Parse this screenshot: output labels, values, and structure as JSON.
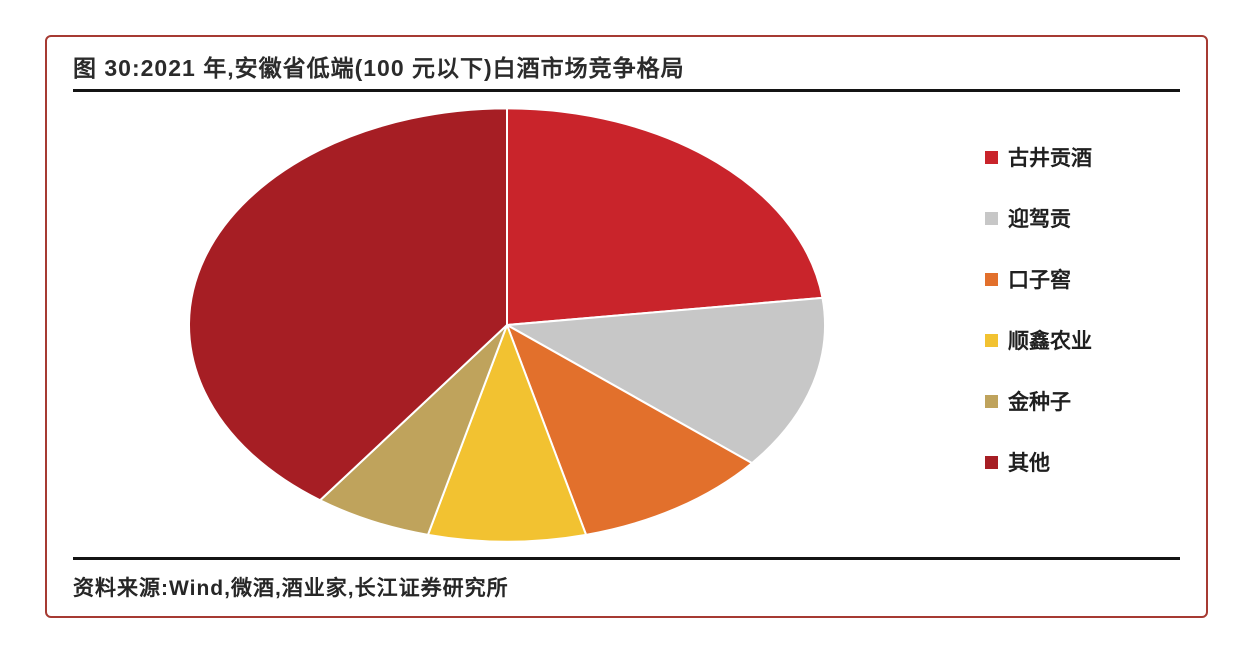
{
  "figure": {
    "title": "图 30:2021 年,安徽省低端(100 元以下)白酒市场竞争格局",
    "source": "资料来源:Wind,微酒,酒业家,长江证券研究所"
  },
  "colors": {
    "card_border": "#a63a32",
    "divider_rule": "#141414",
    "title_text": "#2b2b2b",
    "slice_stroke": "#ffffff"
  },
  "chart_data": {
    "type": "pie",
    "title": "图 30:2021 年,安徽省低端(100 元以下)白酒市场竞争格局",
    "legend_position": "right",
    "start_angle_deg": 0,
    "direction": "clockwise",
    "unit": "percent",
    "slices": [
      {
        "label": "古井贡酒",
        "value": 23,
        "color": "#c9242b"
      },
      {
        "label": "迎驾贡",
        "value": 13,
        "color": "#c7c7c7"
      },
      {
        "label": "口子窖",
        "value": 10,
        "color": "#e2702c"
      },
      {
        "label": "顺鑫农业",
        "value": 8,
        "color": "#f2c231"
      },
      {
        "label": "金种子",
        "value": 6,
        "color": "#bfa35c"
      },
      {
        "label": "其他",
        "value": 40,
        "color": "#a61e24"
      }
    ]
  }
}
